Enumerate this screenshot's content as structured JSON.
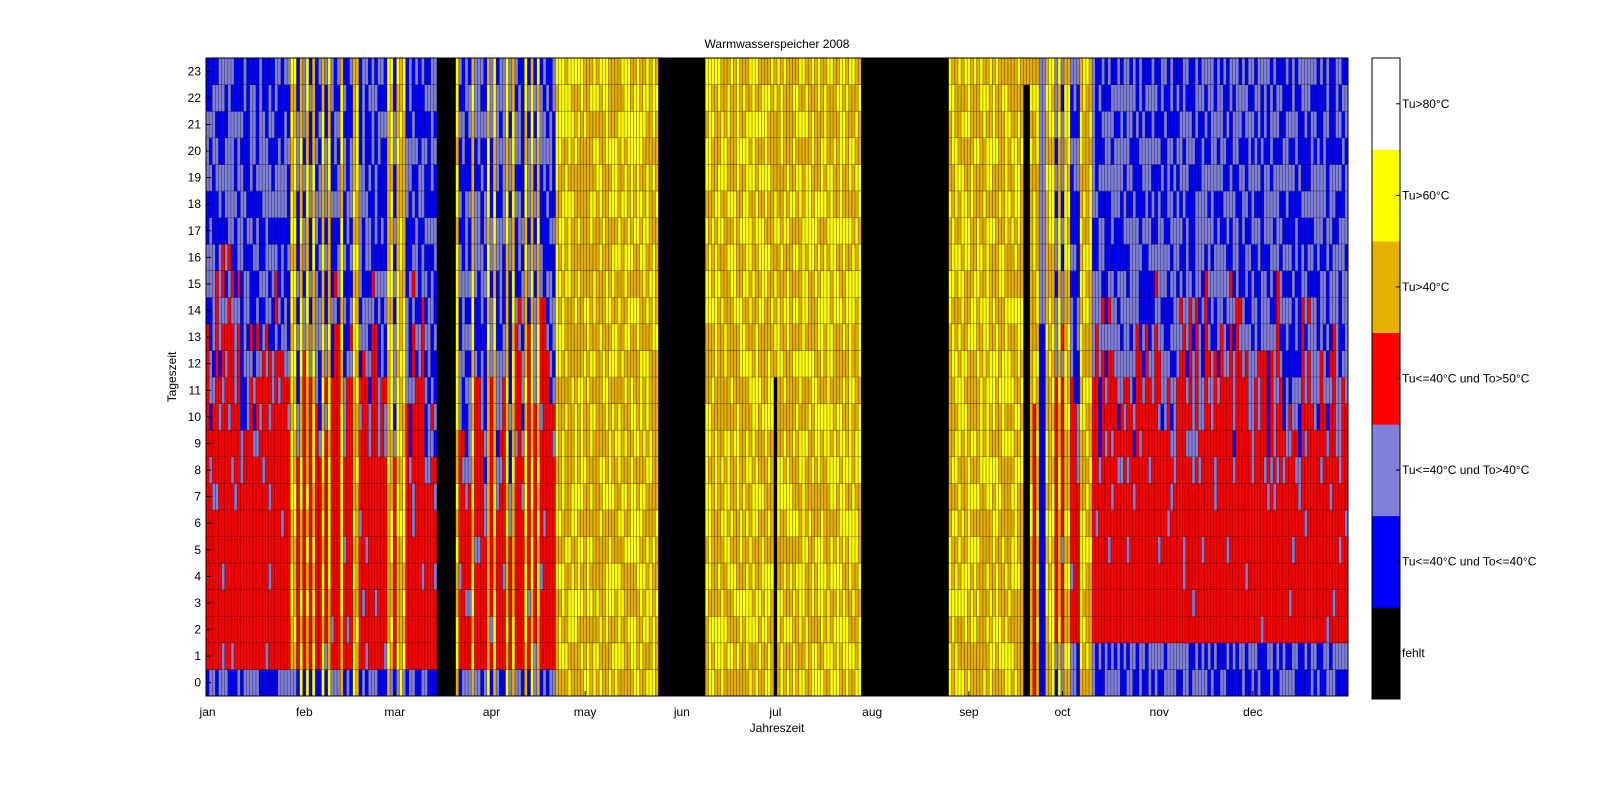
{
  "chart_data": {
    "type": "heatmap",
    "title": "Warmwasserspeicher 2008",
    "xlabel": "Jahreszeit",
    "ylabel": "Tageszeit",
    "x_ticks": [
      "jan",
      "feb",
      "mar",
      "apr",
      "may",
      "jun",
      "jul",
      "aug",
      "sep",
      "oct",
      "nov",
      "dec"
    ],
    "x_tick_days": [
      1,
      32,
      61,
      92,
      122,
      153,
      183,
      214,
      245,
      275,
      306,
      336
    ],
    "xlim_days": [
      0,
      366
    ],
    "y_ticks": [
      "0",
      "1",
      "2",
      "3",
      "4",
      "5",
      "6",
      "7",
      "8",
      "9",
      "10",
      "11",
      "12",
      "13",
      "14",
      "15",
      "16",
      "17",
      "18",
      "19",
      "20",
      "21",
      "22",
      "23"
    ],
    "ylim": [
      0,
      24
    ],
    "grid": true,
    "categories": [
      {
        "code": 0,
        "label": "fehlt",
        "color": "#000000"
      },
      {
        "code": 1,
        "label": "Tu<=40°C und To<=40°C",
        "color": "#0000ff"
      },
      {
        "code": 2,
        "label": "Tu<=40°C und To>40°C",
        "color": "#8080d8"
      },
      {
        "code": 3,
        "label": "Tu<=40°C und To>50°C",
        "color": "#ff0000"
      },
      {
        "code": 4,
        "label": "Tu>40°C",
        "color": "#e6b000"
      },
      {
        "code": 5,
        "label": "Tu>60°C",
        "color": "#ffff00"
      },
      {
        "code": 6,
        "label": "Tu>80°C",
        "color": "#ffffff"
      }
    ],
    "day_patterns": [
      {
        "from_day": 1,
        "to_day": 24,
        "hours": "blue/periwinkle 0-1, red 1-8 to 16, periwinkle and blue above"
      },
      {
        "from_day": 25,
        "to_day": 74,
        "hours": "mixed red, periwinkle, yellow and blue bands"
      },
      {
        "from_day": 75,
        "to_day": 80,
        "hours": "fehlt (missing)"
      },
      {
        "from_day": 81,
        "to_day": 112,
        "hours": "red 1-8 to 14, periwinkle and blue above, yellow streaks"
      },
      {
        "from_day": 113,
        "to_day": 145,
        "hours": "yellow / orange, all hours"
      },
      {
        "from_day": 146,
        "to_day": 160,
        "hours": "fehlt (missing)"
      },
      {
        "from_day": 161,
        "to_day": 210,
        "hours": "yellow / orange, all hours"
      },
      {
        "from_day": 211,
        "to_day": 238,
        "hours": "fehlt (missing)"
      },
      {
        "from_day": 239,
        "to_day": 272,
        "hours": "yellow / orange, all hours, with blue and red columns near the end"
      },
      {
        "from_day": 273,
        "to_day": 366,
        "hours": "periwinkle 0-2, red 2-10 to 16, periwinkle and blue above"
      }
    ],
    "colorbar": {
      "labels": [
        "Tu>80°C",
        "Tu>60°C",
        "Tu>40°C",
        "Tu<=40°C und To>50°C",
        "Tu<=40°C und To>40°C",
        "Tu<=40°C und To<=40°C",
        "fehlt"
      ]
    }
  }
}
